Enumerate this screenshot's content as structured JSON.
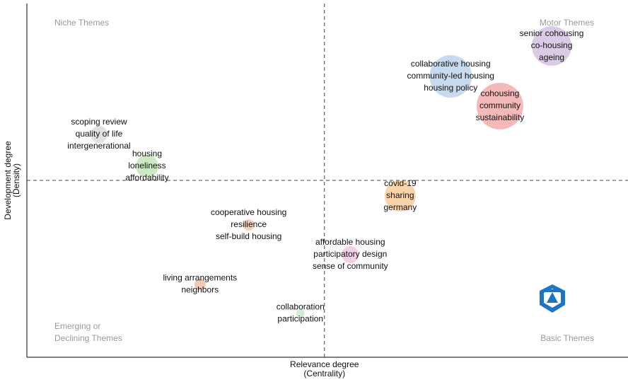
{
  "chart_data": {
    "type": "bubble",
    "x_label": [
      "Relevance degree",
      "(Centrality)"
    ],
    "y_label": [
      "Development degree",
      "(Density)"
    ],
    "quadrants": {
      "top_left": [
        "Niche Themes"
      ],
      "top_right": [
        "Motor Themes"
      ],
      "bottom_left": [
        "Emerging or",
        "Declining Themes"
      ],
      "bottom_right": [
        "Basic Themes"
      ]
    },
    "xlim": [
      0,
      100
    ],
    "ylim": [
      0,
      100
    ],
    "x_ref": 49.5,
    "y_ref": 50,
    "x": [
      87.3,
      70.5,
      78.7,
      12.0,
      20.0,
      62.1,
      36.9,
      53.8,
      28.8,
      45.5
    ],
    "y": [
      88.0,
      79.4,
      71.0,
      63.0,
      54.0,
      45.6,
      37.4,
      29.0,
      20.6,
      12.4
    ],
    "sizes": [
      28,
      30,
      33,
      12,
      16,
      22,
      8,
      12,
      8,
      6
    ],
    "colors": [
      "#dccbe6",
      "#c8dbee",
      "#f5b9b9",
      "#e2e2e2",
      "#cce9c4",
      "#f9d4aa",
      "#f3cdc4",
      "#f3d0e6",
      "#f5c8b4",
      "#d0ecd7"
    ],
    "labels": [
      [
        "senior cohousing",
        "co-housing",
        "ageing"
      ],
      [
        "collaborative housing",
        "community-led housing",
        "housing policy"
      ],
      [
        "cohousing",
        "community",
        "sustainability"
      ],
      [
        "scoping review",
        "quality of life",
        "intergenerational"
      ],
      [
        "housing",
        "loneliness",
        "affordability"
      ],
      [
        "covid-19",
        "sharing",
        "germany"
      ],
      [
        "cooperative housing",
        "resilience",
        "self-build housing"
      ],
      [
        "affordable housing",
        "participatory design",
        "sense of community"
      ],
      [
        "living arrangements",
        "neighbors"
      ],
      [
        "collaboration",
        "participation"
      ]
    ]
  }
}
